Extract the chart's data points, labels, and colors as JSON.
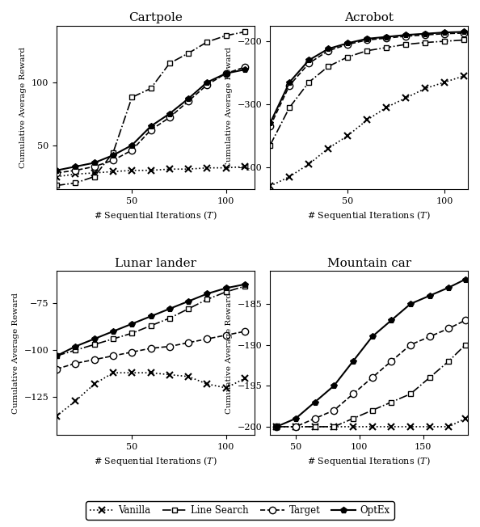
{
  "cartpole": {
    "title": "Cartpole",
    "xlim": [
      10,
      115
    ],
    "xticks": [
      50,
      100
    ],
    "ylim": [
      15,
      145
    ],
    "yticks": [
      50,
      100
    ],
    "vanilla": {
      "x": [
        10,
        20,
        30,
        40,
        50,
        60,
        70,
        80,
        90,
        100,
        110
      ],
      "y": [
        25,
        27,
        28,
        29,
        30,
        30,
        31,
        31,
        32,
        32,
        33
      ]
    },
    "linesearch": {
      "x": [
        10,
        20,
        30,
        40,
        50,
        60,
        70,
        80,
        90,
        100,
        110
      ],
      "y": [
        18,
        20,
        25,
        44,
        88,
        95,
        115,
        123,
        132,
        137,
        140
      ]
    },
    "target": {
      "x": [
        10,
        20,
        30,
        40,
        50,
        60,
        70,
        80,
        90,
        100,
        110
      ],
      "y": [
        28,
        30,
        33,
        38,
        46,
        62,
        72,
        85,
        98,
        107,
        112
      ]
    },
    "optex": {
      "x": [
        10,
        20,
        30,
        40,
        50,
        60,
        70,
        80,
        90,
        100,
        110
      ],
      "y": [
        30,
        33,
        36,
        42,
        50,
        65,
        75,
        87,
        100,
        107,
        110
      ]
    }
  },
  "acrobot": {
    "title": "Acrobot",
    "xlim": [
      10,
      112
    ],
    "xticks": [
      50,
      100
    ],
    "ylim": [
      -435,
      -175
    ],
    "yticks": [
      -400,
      -300,
      -200
    ],
    "vanilla": {
      "x": [
        10,
        20,
        30,
        40,
        50,
        60,
        70,
        80,
        90,
        100,
        110
      ],
      "y": [
        -430,
        -415,
        -395,
        -370,
        -350,
        -325,
        -305,
        -290,
        -275,
        -265,
        -255
      ]
    },
    "linesearch": {
      "x": [
        10,
        20,
        30,
        40,
        50,
        60,
        70,
        80,
        90,
        100,
        110
      ],
      "y": [
        -365,
        -305,
        -265,
        -240,
        -225,
        -215,
        -210,
        -205,
        -202,
        -200,
        -198
      ]
    },
    "target": {
      "x": [
        10,
        20,
        30,
        40,
        50,
        60,
        70,
        80,
        90,
        100,
        110
      ],
      "y": [
        -335,
        -270,
        -235,
        -215,
        -205,
        -198,
        -195,
        -192,
        -190,
        -188,
        -187
      ]
    },
    "optex": {
      "x": [
        10,
        20,
        30,
        40,
        50,
        60,
        70,
        80,
        90,
        100,
        110
      ],
      "y": [
        -330,
        -265,
        -230,
        -212,
        -203,
        -196,
        -193,
        -190,
        -188,
        -186,
        -185
      ]
    }
  },
  "lunarlander": {
    "title": "Lunar lander",
    "xlim": [
      10,
      115
    ],
    "xticks": [
      50,
      100
    ],
    "ylim": [
      -145,
      -58
    ],
    "yticks": [
      -125,
      -100,
      -75
    ],
    "vanilla": {
      "x": [
        10,
        20,
        30,
        40,
        50,
        60,
        70,
        80,
        90,
        100,
        110
      ],
      "y": [
        -135,
        -127,
        -118,
        -112,
        -112,
        -112,
        -113,
        -114,
        -118,
        -120,
        -115
      ]
    },
    "linesearch": {
      "x": [
        10,
        20,
        30,
        40,
        50,
        60,
        70,
        80,
        90,
        100,
        110
      ],
      "y": [
        -103,
        -100,
        -97,
        -94,
        -91,
        -87,
        -83,
        -78,
        -73,
        -69,
        -66
      ]
    },
    "target": {
      "x": [
        10,
        20,
        30,
        40,
        50,
        60,
        70,
        80,
        90,
        100,
        110
      ],
      "y": [
        -110,
        -107,
        -105,
        -103,
        -101,
        -99,
        -98,
        -96,
        -94,
        -92,
        -90
      ]
    },
    "optex": {
      "x": [
        10,
        20,
        30,
        40,
        50,
        60,
        70,
        80,
        90,
        100,
        110
      ],
      "y": [
        -103,
        -98,
        -94,
        -90,
        -86,
        -82,
        -78,
        -74,
        -70,
        -67,
        -65
      ]
    }
  },
  "mountaincar": {
    "title": "Mountain car",
    "xlim": [
      30,
      185
    ],
    "xticks": [
      50,
      100,
      150
    ],
    "ylim": [
      -201,
      -181
    ],
    "yticks": [
      -200,
      -195,
      -190,
      -185
    ],
    "vanilla": {
      "x": [
        35,
        50,
        65,
        80,
        95,
        110,
        125,
        140,
        155,
        170,
        183
      ],
      "y": [
        -200,
        -200,
        -200,
        -200,
        -200,
        -200,
        -200,
        -200,
        -200,
        -200,
        -199
      ]
    },
    "linesearch": {
      "x": [
        35,
        50,
        65,
        80,
        95,
        110,
        125,
        140,
        155,
        170,
        183
      ],
      "y": [
        -200,
        -200,
        -200,
        -200,
        -199,
        -198,
        -197,
        -196,
        -194,
        -192,
        -190
      ]
    },
    "target": {
      "x": [
        35,
        50,
        65,
        80,
        95,
        110,
        125,
        140,
        155,
        170,
        183
      ],
      "y": [
        -200,
        -200,
        -199,
        -198,
        -196,
        -194,
        -192,
        -190,
        -189,
        -188,
        -187
      ]
    },
    "optex": {
      "x": [
        35,
        50,
        65,
        80,
        95,
        110,
        125,
        140,
        155,
        170,
        183
      ],
      "y": [
        -200,
        -199,
        -197,
        -195,
        -192,
        -189,
        -187,
        -185,
        -184,
        -183,
        -182
      ]
    }
  },
  "legend": {
    "vanilla_label": "Vanilla",
    "linesearch_label": "Line Search",
    "target_label": "Target",
    "optex_label": "OptEx"
  },
  "ylabel": "Cumulative Average Reward",
  "xlabel": "# Sequential Iterations ($T$)"
}
